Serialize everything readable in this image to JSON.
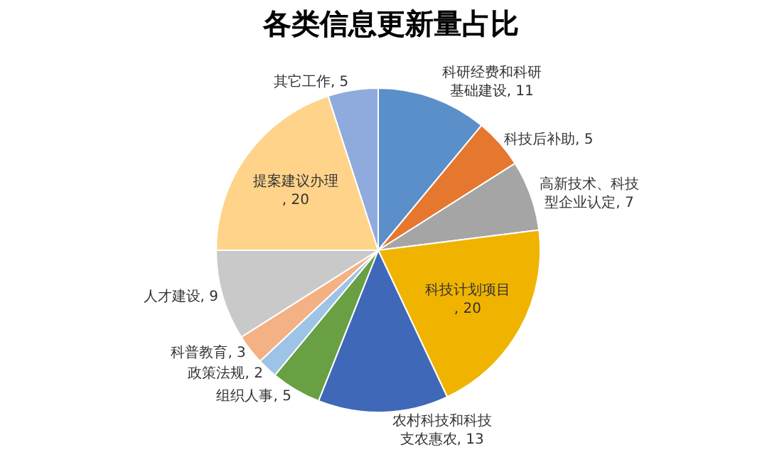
{
  "chart_data": {
    "type": "pie",
    "title": "各类信息更新量占比",
    "categories": [
      "科研经费和科研基础建设, 11",
      "科技后补助, 5",
      "高新技术、科技型企业认定, 7",
      "科技计划项目, 20",
      "农村科技和科技支农惠农, 13",
      "组织人事, 5",
      "政策法规, 2",
      "科普教育, 3",
      "人才建设, 9",
      "提案建议办理, 20",
      "其它工作, 5"
    ],
    "values": [
      11,
      5,
      7,
      20,
      13,
      5,
      2,
      3,
      9,
      20,
      5
    ],
    "colors": [
      "#5b8fc9",
      "#e5772f",
      "#a5a5a5",
      "#f0b400",
      "#3f68b8",
      "#68a043",
      "#9dc3e6",
      "#f4b183",
      "#c9c9c9",
      "#ffd38a",
      "#8faadc"
    ],
    "legend": false
  }
}
